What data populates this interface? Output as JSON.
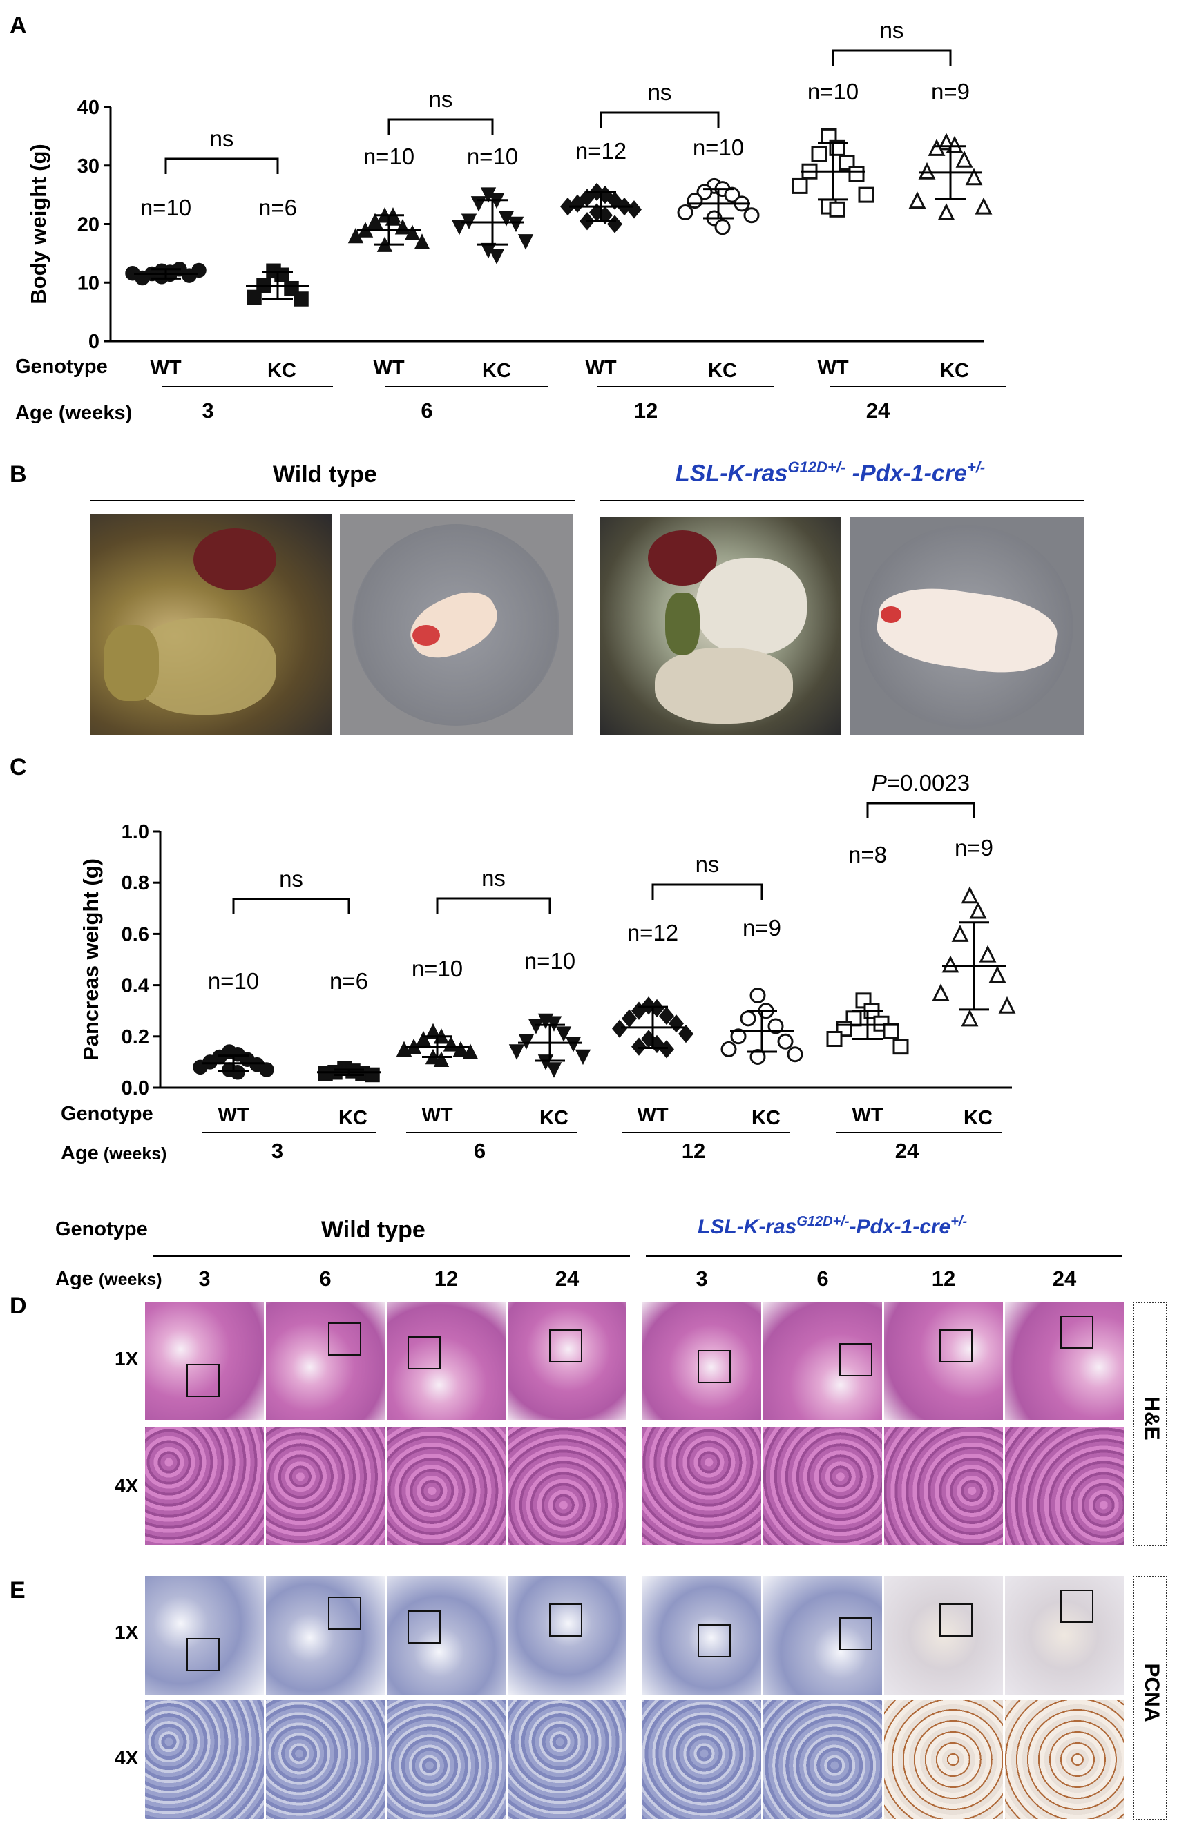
{
  "panel_labels": {
    "a": "A",
    "b": "B",
    "c": "C",
    "d": "D",
    "e": "E"
  },
  "panel_b": {
    "wild_type": "Wild type",
    "mutant_prefix": "LSL-K-ras",
    "mutant_sup1": "G12D+/-",
    "mutant_middle": " -Pdx-1-cre",
    "mutant_sup2": "+/-"
  },
  "panel_de": {
    "genotype_label": "Genotype",
    "age_label": "Age",
    "age_unit": "(weeks)",
    "wild_type": "Wild type",
    "mutant_prefix": "LSL-K-ras",
    "mutant_sup1": "G12D+/-",
    "mutant_middle": "-Pdx-1-cre",
    "mutant_sup2": "+/-",
    "ages": [
      "3",
      "6",
      "12",
      "24",
      "3",
      "6",
      "12",
      "24"
    ],
    "row_1x": "1X",
    "row_4x": "4X",
    "stain_d": "H&E",
    "stain_e": "PCNA"
  },
  "chart_data": [
    {
      "type": "scatter",
      "panel": "A",
      "ylabel": "Body weight (g)",
      "ylim": [
        0,
        40
      ],
      "yticks": [
        0,
        10,
        20,
        30,
        40
      ],
      "genotype_label": "Genotype",
      "age_label": "Age (weeks)",
      "groups": [
        {
          "genotype": "WT",
          "age": "3",
          "n_label": "n=10",
          "marker": "circle-filled",
          "mean": 11.5,
          "sd": 0.8,
          "values": [
            12.0,
            11.8,
            11.5,
            12.3,
            10.8,
            11.2,
            11.6,
            12.1,
            11.0,
            11.4
          ]
        },
        {
          "genotype": "KC",
          "age": "3",
          "n_label": "n=6",
          "marker": "square-filled",
          "mean": 9.5,
          "sd": 2.3,
          "values": [
            12.0,
            11.3,
            9.5,
            9.0,
            7.5,
            7.2
          ]
        },
        {
          "genotype": "WT",
          "age": "6",
          "n_label": "n=10",
          "marker": "triangle-filled",
          "mean": 19.0,
          "sd": 2.5,
          "values": [
            21.5,
            21.0,
            20.5,
            19.5,
            19.0,
            18.5,
            18.0,
            17.0,
            16.5,
            21.5
          ]
        },
        {
          "genotype": "KC",
          "age": "6",
          "n_label": "n=10",
          "marker": "triangle-down-filled",
          "mean": 20.3,
          "sd": 3.8,
          "values": [
            25.0,
            24.0,
            23.5,
            21.0,
            20.5,
            20.0,
            19.5,
            17.0,
            15.5,
            14.5
          ]
        },
        {
          "genotype": "WT",
          "age": "12",
          "n_label": "n=12",
          "marker": "diamond-filled",
          "mean": 23.0,
          "sd": 2.5,
          "values": [
            25.5,
            25.0,
            24.5,
            24.0,
            23.5,
            23.0,
            23.0,
            22.5,
            22.0,
            21.5,
            20.5,
            20.0
          ]
        },
        {
          "genotype": "KC",
          "age": "12",
          "n_label": "n=10",
          "marker": "circle-open",
          "mean": 23.5,
          "sd": 2.5,
          "values": [
            26.5,
            26.0,
            25.5,
            25.0,
            24.0,
            23.5,
            22.0,
            21.5,
            21.0,
            19.5
          ]
        },
        {
          "genotype": "WT",
          "age": "24",
          "n_label": "n=10",
          "marker": "square-open",
          "mean": 29.0,
          "sd": 4.8,
          "values": [
            35.0,
            33.0,
            32.0,
            30.5,
            29.0,
            28.5,
            26.5,
            25.0,
            23.0,
            22.5
          ]
        },
        {
          "genotype": "KC",
          "age": "24",
          "n_label": "n=9",
          "marker": "triangle-open",
          "mean": 28.8,
          "sd": 4.5,
          "values": [
            34.0,
            33.5,
            33.0,
            31.0,
            29.0,
            28.0,
            24.0,
            23.0,
            22.0
          ]
        }
      ],
      "age_groups": [
        "3",
        "6",
        "12",
        "24"
      ],
      "comparisons": [
        {
          "age": "3",
          "label": "ns"
        },
        {
          "age": "6",
          "label": "ns"
        },
        {
          "age": "12",
          "label": "ns"
        },
        {
          "age": "24",
          "label": "ns"
        }
      ]
    },
    {
      "type": "scatter",
      "panel": "C",
      "ylabel": "Pancreas weight (g)",
      "ylim": [
        0,
        1.0
      ],
      "yticks": [
        0.0,
        0.2,
        0.4,
        0.6,
        0.8,
        1.0
      ],
      "ytick_labels": [
        "0.0",
        "0.2",
        "0.4",
        "0.6",
        "0.8",
        "1.0"
      ],
      "genotype_label": "Genotype",
      "age_label": "Age",
      "age_unit": "(weeks)",
      "groups": [
        {
          "genotype": "WT",
          "age": "3",
          "n_label": "n=10",
          "marker": "circle-filled",
          "mean": 0.095,
          "sd": 0.03,
          "values": [
            0.14,
            0.13,
            0.12,
            0.11,
            0.1,
            0.09,
            0.08,
            0.07,
            0.07,
            0.06
          ]
        },
        {
          "genotype": "KC",
          "age": "3",
          "n_label": "n=6",
          "marker": "square-filled",
          "mean": 0.06,
          "sd": 0.01,
          "values": [
            0.075,
            0.065,
            0.06,
            0.055,
            0.055,
            0.05
          ]
        },
        {
          "genotype": "WT",
          "age": "6",
          "n_label": "n=10",
          "marker": "triangle-filled",
          "mean": 0.16,
          "sd": 0.04,
          "values": [
            0.22,
            0.2,
            0.19,
            0.17,
            0.16,
            0.15,
            0.15,
            0.14,
            0.12,
            0.11
          ]
        },
        {
          "genotype": "KC",
          "age": "6",
          "n_label": "n=10",
          "marker": "triangle-down-filled",
          "mean": 0.175,
          "sd": 0.07,
          "values": [
            0.26,
            0.25,
            0.24,
            0.21,
            0.18,
            0.17,
            0.14,
            0.12,
            0.1,
            0.07
          ]
        },
        {
          "genotype": "WT",
          "age": "12",
          "n_label": "n=12",
          "marker": "diamond-filled",
          "mean": 0.235,
          "sd": 0.08,
          "values": [
            0.32,
            0.31,
            0.3,
            0.28,
            0.27,
            0.25,
            0.23,
            0.21,
            0.19,
            0.17,
            0.16,
            0.15
          ]
        },
        {
          "genotype": "KC",
          "age": "12",
          "n_label": "n=9",
          "marker": "circle-open",
          "mean": 0.22,
          "sd": 0.08,
          "values": [
            0.36,
            0.3,
            0.27,
            0.24,
            0.2,
            0.18,
            0.15,
            0.13,
            0.12
          ]
        },
        {
          "genotype": "WT",
          "age": "24",
          "n_label": "n=8",
          "marker": "square-open",
          "mean": 0.245,
          "sd": 0.055,
          "values": [
            0.34,
            0.3,
            0.27,
            0.25,
            0.23,
            0.22,
            0.19,
            0.16
          ]
        },
        {
          "genotype": "KC",
          "age": "24",
          "n_label": "n=9",
          "marker": "triangle-open",
          "mean": 0.475,
          "sd": 0.17,
          "values": [
            0.75,
            0.69,
            0.6,
            0.52,
            0.48,
            0.44,
            0.37,
            0.32,
            0.27
          ]
        }
      ],
      "age_groups": [
        "3",
        "6",
        "12",
        "24"
      ],
      "comparisons": [
        {
          "age": "3",
          "label": "ns"
        },
        {
          "age": "6",
          "label": "ns"
        },
        {
          "age": "12",
          "label": "ns"
        },
        {
          "age": "24",
          "label_italic": "P",
          "label": "=0.0023"
        }
      ]
    }
  ]
}
